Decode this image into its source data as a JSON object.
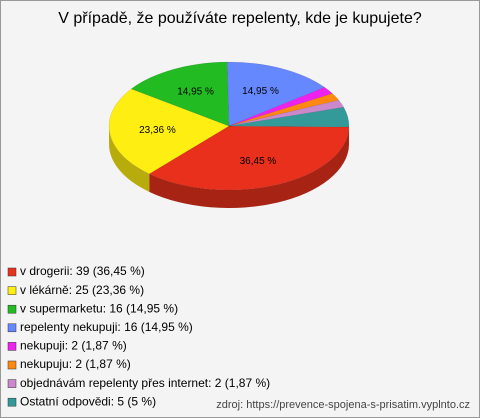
{
  "chart_data": {
    "type": "pie3d",
    "title": "V případě, že používáte repelenty, kde je kupujete?",
    "categories": [
      "v drogerii: 39 (36,45 %)",
      "v lékárně: 25 (23,36 %)",
      "v supermarketu: 16 (14,95 %)",
      "repelenty nekupuji: 16 (14,95 %)",
      "nekupuji: 2 (1,87 %)",
      "nekupuju: 2 (1,87 %)",
      "objednávám repelenty přes internet: 2 (1,87 %)",
      "Ostatní odpovědi: 5 (5 %)"
    ],
    "values": [
      36.45,
      23.36,
      14.95,
      14.95,
      1.87,
      1.87,
      1.87,
      5
    ],
    "value_labels": [
      "36,45 %",
      "23,36 %",
      "14,95 %",
      "14,95 %",
      null,
      null,
      null,
      null
    ],
    "colors": [
      "#e8301c",
      "#ffee11",
      "#22bb22",
      "#6688ff",
      "#ee22ee",
      "#ff8811",
      "#cc88cc",
      "#339999"
    ],
    "legend": "bottom-left",
    "source": "zdroj: https://prevence-spojena-s-prisatim.vyplnto.cz"
  }
}
